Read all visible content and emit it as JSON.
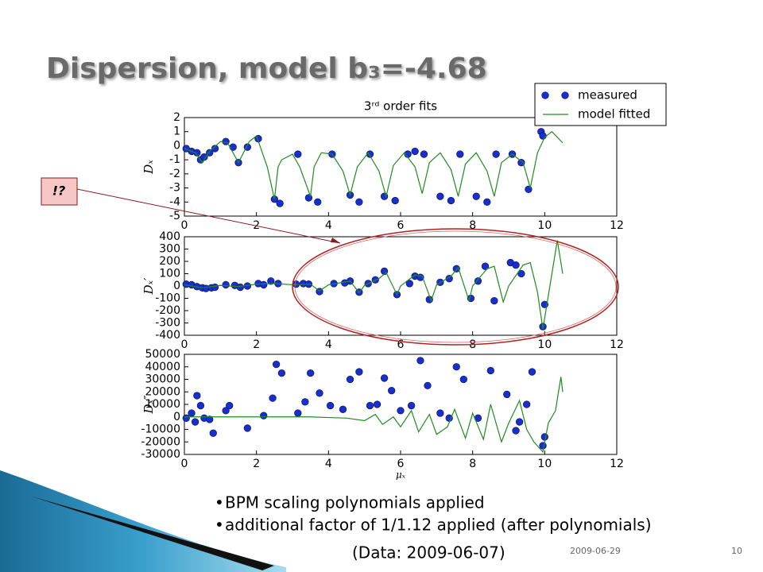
{
  "slide": {
    "title": "Dispersion, model b₃=-4.68",
    "annotation": "!?",
    "bullets": [
      "BPM scaling polynomials applied",
      "additional factor of 1/1.12 applied (after polynomials)"
    ],
    "data_note": "(Data: 2009-06-07)",
    "date": "2009-06-29",
    "page": 10
  },
  "chart_data": [
    {
      "type": "scatter",
      "title": "3ʳᵈ order fits",
      "ylabel": "Dₓ",
      "legend": "upper right",
      "xlim": [
        0,
        12
      ],
      "xticks": [
        0,
        2,
        4,
        6,
        8,
        10,
        12
      ],
      "ylim": [
        -5,
        2
      ],
      "yticks": [
        2,
        1,
        0,
        -1,
        -2,
        -3,
        -4,
        -5
      ],
      "series": [
        {
          "name": "measured",
          "kind": "scatter",
          "color": "#1a2ecc",
          "x": [
            0.05,
            0.2,
            0.35,
            0.45,
            0.55,
            0.7,
            0.85,
            1.15,
            1.35,
            1.5,
            1.75,
            2.05,
            2.5,
            2.65,
            3.15,
            3.45,
            3.7,
            4.1,
            4.6,
            4.85,
            5.15,
            5.55,
            5.85,
            6.2,
            6.4,
            6.65,
            7.1,
            7.4,
            7.65,
            8.1,
            8.4,
            8.65,
            9.1,
            9.35,
            9.55,
            9.9,
            9.95
          ],
          "values": [
            -0.2,
            -0.4,
            -0.5,
            -1.0,
            -0.8,
            -0.5,
            -0.2,
            0.3,
            -0.1,
            -1.2,
            -0.1,
            0.5,
            -3.8,
            -4.1,
            -0.6,
            -3.7,
            -4.0,
            -0.6,
            -3.5,
            -4.0,
            -0.6,
            -3.6,
            -3.9,
            -0.6,
            -0.4,
            -0.6,
            -3.6,
            -3.9,
            -0.6,
            -3.6,
            -4.0,
            -0.6,
            -0.6,
            -1.2,
            -3.1,
            1.0,
            0.7
          ]
        },
        {
          "name": "model fitted",
          "kind": "line",
          "color": "#1e8c1e",
          "x": [
            0,
            0.3,
            0.5,
            0.7,
            1.0,
            1.2,
            1.5,
            1.8,
            2.0,
            2.3,
            2.5,
            2.6,
            2.7,
            3.0,
            3.2,
            3.5,
            3.6,
            3.8,
            4.1,
            4.4,
            4.6,
            4.8,
            5.1,
            5.4,
            5.6,
            5.8,
            6.1,
            6.4,
            6.6,
            6.8,
            7.1,
            7.4,
            7.6,
            7.8,
            8.1,
            8.4,
            8.6,
            8.8,
            9.1,
            9.4,
            9.6,
            9.8,
            10.0,
            10.2,
            10.5
          ],
          "values": [
            -0.2,
            -0.5,
            -1.2,
            -0.4,
            0.3,
            0.2,
            -1.2,
            0.3,
            0.7,
            -1.5,
            -3.8,
            -1.5,
            -1.0,
            -0.6,
            -1.5,
            -3.6,
            -1.5,
            -0.5,
            -0.6,
            -1.8,
            -3.5,
            -1.5,
            -0.5,
            -1.8,
            -3.6,
            -1.4,
            -0.5,
            -1.5,
            -3.4,
            -1.2,
            -0.5,
            -1.7,
            -3.6,
            -1.3,
            -0.5,
            -1.8,
            -3.6,
            -1.2,
            -0.6,
            -1.2,
            -3.0,
            -0.5,
            0.6,
            1.0,
            0.2
          ]
        }
      ]
    },
    {
      "type": "scatter",
      "ylabel": "Dₓ′",
      "xlim": [
        0,
        12
      ],
      "xticks": [
        0,
        2,
        4,
        6,
        8,
        10,
        12
      ],
      "ylim": [
        -400,
        400
      ],
      "yticks": [
        400,
        300,
        200,
        100,
        0,
        -100,
        -200,
        -300,
        -400
      ],
      "series": [
        {
          "kind": "scatter",
          "color": "#1a2ecc",
          "x": [
            0.05,
            0.2,
            0.35,
            0.5,
            0.6,
            0.75,
            0.85,
            1.15,
            1.4,
            1.55,
            1.75,
            2.05,
            2.2,
            2.4,
            2.6,
            3.1,
            3.3,
            3.45,
            3.75,
            4.15,
            4.45,
            4.6,
            4.85,
            5.1,
            5.3,
            5.55,
            5.9,
            6.25,
            6.4,
            6.55,
            6.8,
            7.1,
            7.35,
            7.55,
            7.95,
            8.15,
            8.35,
            8.6,
            9.05,
            9.2,
            9.35,
            9.95,
            10.0
          ],
          "values": [
            15,
            10,
            -5,
            -15,
            -20,
            -15,
            -10,
            10,
            5,
            -10,
            0,
            20,
            10,
            40,
            20,
            15,
            20,
            15,
            -45,
            20,
            25,
            40,
            -50,
            20,
            50,
            120,
            -70,
            20,
            80,
            70,
            -110,
            30,
            60,
            140,
            -100,
            40,
            160,
            -120,
            190,
            170,
            100,
            -330,
            -150
          ]
        },
        {
          "kind": "line",
          "color": "#1e8c1e",
          "x": [
            0,
            0.5,
            1,
            1.5,
            2,
            2.5,
            3,
            3.5,
            3.75,
            4.0,
            4.4,
            4.6,
            4.85,
            5.0,
            5.4,
            5.6,
            5.9,
            6.0,
            6.4,
            6.6,
            6.85,
            7.0,
            7.4,
            7.6,
            7.9,
            8.0,
            8.4,
            8.6,
            8.85,
            9.0,
            9.4,
            9.6,
            9.8,
            9.95,
            10.2,
            10.35,
            10.5
          ],
          "values": [
            10,
            -15,
            5,
            -5,
            15,
            20,
            10,
            15,
            -40,
            10,
            30,
            40,
            -55,
            5,
            60,
            110,
            -70,
            0,
            90,
            80,
            -120,
            10,
            80,
            150,
            -120,
            0,
            140,
            160,
            -130,
            0,
            170,
            190,
            -50,
            -350,
            100,
            370,
            100
          ]
        }
      ]
    },
    {
      "type": "scatter",
      "ylabel": "Dₓ″",
      "xlabel": "μₓ",
      "xlim": [
        0,
        12
      ],
      "xticks": [
        0,
        2,
        4,
        6,
        8,
        10,
        12
      ],
      "ylim": [
        -30000,
        50000
      ],
      "yticks": [
        50000,
        40000,
        30000,
        20000,
        10000,
        0,
        -10000,
        -20000,
        -30000
      ],
      "series": [
        {
          "kind": "scatter",
          "color": "#1a2ecc",
          "x": [
            0.05,
            0.2,
            0.3,
            0.35,
            0.45,
            0.55,
            0.7,
            0.8,
            1.15,
            1.25,
            1.75,
            2.2,
            2.45,
            2.55,
            2.7,
            3.15,
            3.35,
            3.5,
            3.75,
            4.05,
            4.4,
            4.6,
            4.85,
            5.15,
            5.35,
            5.55,
            5.75,
            6.0,
            6.3,
            6.55,
            6.75,
            7.1,
            7.35,
            7.55,
            7.75,
            8.15,
            8.5,
            8.95,
            9.2,
            9.3,
            9.5,
            9.65,
            9.95,
            10.0
          ],
          "values": [
            -1000,
            3000,
            -4000,
            17000,
            9000,
            -1000,
            -2000,
            -13000,
            5000,
            9000,
            -9000,
            1000,
            15000,
            42000,
            35000,
            3000,
            12000,
            35000,
            19000,
            9000,
            6000,
            30000,
            36000,
            9000,
            10000,
            31000,
            21000,
            5000,
            9000,
            45000,
            25000,
            3000,
            -1000,
            40000,
            30000,
            -1000,
            37000,
            18000,
            -11000,
            -4000,
            10000,
            36000,
            -23000,
            -16000
          ]
        },
        {
          "kind": "line",
          "color": "#1e8c1e",
          "x": [
            0,
            1,
            2,
            3,
            3.5,
            4,
            4.5,
            5,
            5.3,
            5.5,
            5.8,
            6.0,
            6.3,
            6.5,
            6.8,
            7.0,
            7.3,
            7.5,
            7.8,
            8.0,
            8.3,
            8.5,
            8.8,
            9.0,
            9.3,
            9.5,
            9.7,
            9.95,
            10.1,
            10.3,
            10.45,
            10.5
          ],
          "values": [
            0,
            0,
            0,
            0,
            0,
            -500,
            -1000,
            -3000,
            2000,
            -6000,
            0,
            -8000,
            5000,
            -12000,
            2000,
            -14000,
            -8000,
            6000,
            -17000,
            3000,
            -18000,
            10000,
            -20000,
            -5000,
            13000,
            -10000,
            -20000,
            -28000,
            -5000,
            5000,
            32000,
            20000
          ]
        }
      ]
    }
  ]
}
